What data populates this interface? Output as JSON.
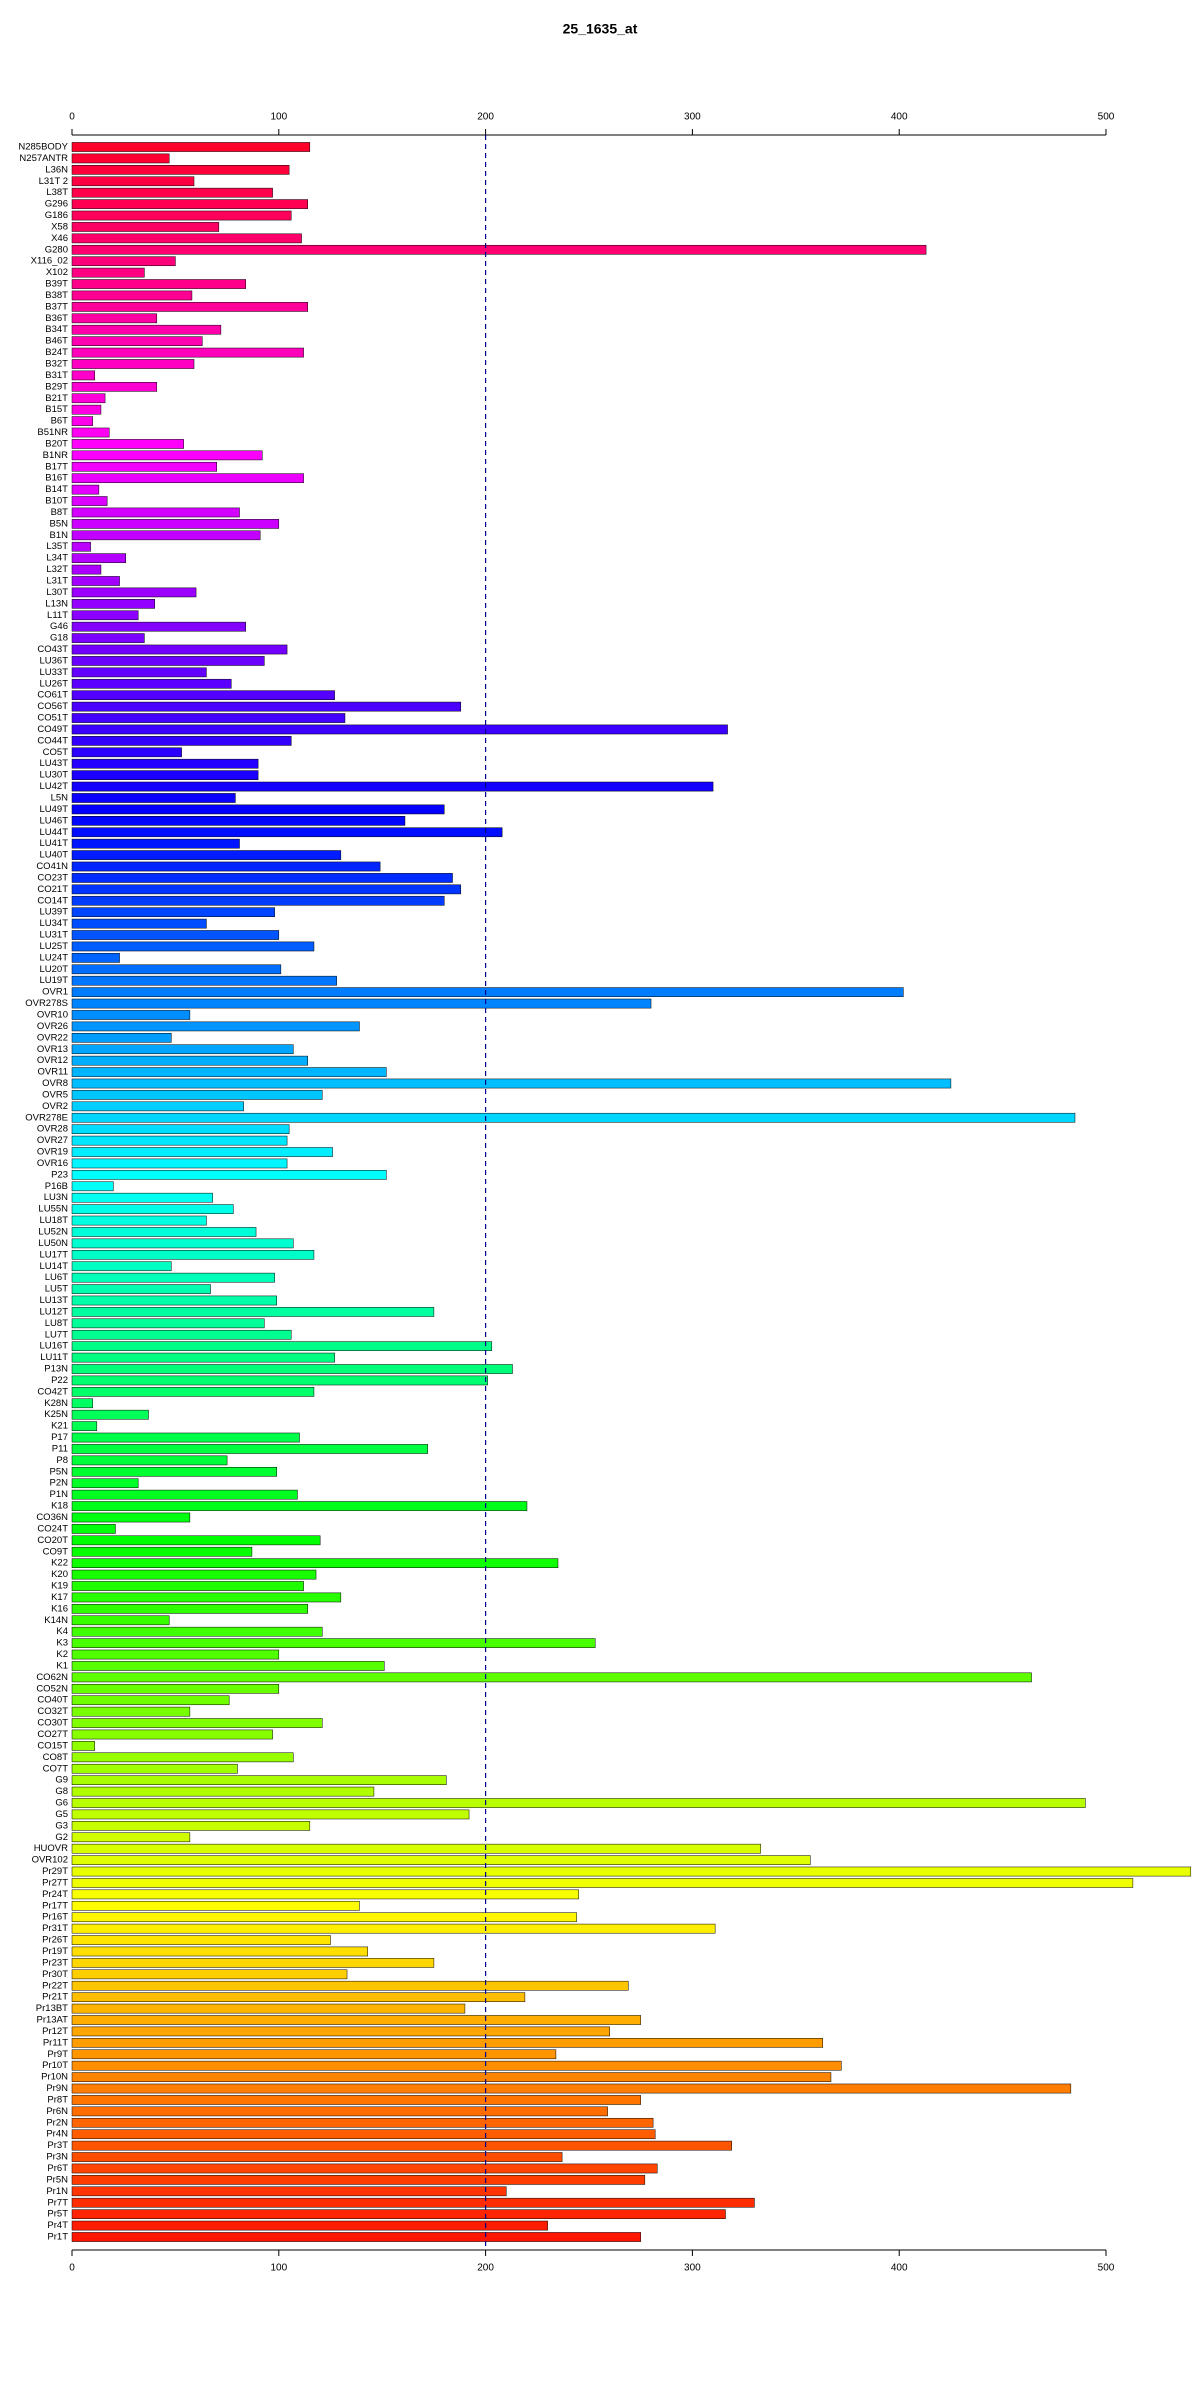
{
  "chart_data": {
    "type": "barh",
    "title": "25_1635_at",
    "categories": [
      "N285BODY",
      "N257ANTR",
      "L36N",
      "L31T 2",
      "L38T",
      "G296",
      "G186",
      "X58",
      "X46",
      "G280",
      "X116_02",
      "X102",
      "B39T",
      "B38T",
      "B37T",
      "B36T",
      "B34T",
      "B46T",
      "B24T",
      "B32T",
      "B31T",
      "B29T",
      "B21T",
      "B15T",
      "B6T",
      "B51NR",
      "B20T",
      "B1NR",
      "B17T",
      "B16T",
      "B14T",
      "B10T",
      "B8T",
      "B5N",
      "B1N",
      "L35T",
      "L34T",
      "L32T",
      "L31T",
      "L30T",
      "L13N",
      "L11T",
      "G46",
      "G18",
      "CO43T",
      "LU36T",
      "LU33T",
      "LU26T",
      "CO61T",
      "CO56T",
      "CO51T",
      "CO49T",
      "CO44T",
      "CO5T",
      "LU43T",
      "LU30T",
      "LU42T",
      "L5N",
      "LU49T",
      "LU46T",
      "LU44T",
      "LU41T",
      "LU40T",
      "CO41N",
      "CO23T",
      "CO21T",
      "CO14T",
      "LU39T",
      "LU34T",
      "LU31T",
      "LU25T",
      "LU24T",
      "LU20T",
      "LU19T",
      "OVR1",
      "OVR278S",
      "OVR10",
      "OVR26",
      "OVR22",
      "OVR13",
      "OVR12",
      "OVR11",
      "OVR8",
      "OVR5",
      "OVR2",
      "OVR278E",
      "OVR28",
      "OVR27",
      "OVR19",
      "OVR16",
      "P23",
      "P16B",
      "LU3N",
      "LU55N",
      "LU18T",
      "LU52N",
      "LU50N",
      "LU17T",
      "LU14T",
      "LU6T",
      "LU5T",
      "LU13T",
      "LU12T",
      "LU8T",
      "LU7T",
      "LU16T",
      "LU11T",
      "P13N",
      "P22",
      "CO42T",
      "K28N",
      "K25N",
      "K21",
      "P17",
      "P11",
      "P8",
      "P5N",
      "P2N",
      "P1N",
      "K18",
      "CO36N",
      "CO24T",
      "CO20T",
      "CO9T",
      "K22",
      "K20",
      "K19",
      "K17",
      "K16",
      "K14N",
      "K4",
      "K3",
      "K2",
      "K1",
      "CO62N",
      "CO52N",
      "CO40T",
      "CO32T",
      "CO30T",
      "CO27T",
      "CO15T",
      "CO8T",
      "CO7T",
      "G9",
      "G8",
      "G6",
      "G5",
      "G3",
      "G2",
      "HUOVR",
      "OVR102",
      "Pr29T",
      "Pr27T",
      "Pr24T",
      "Pr17T",
      "Pr16T",
      "Pr31T",
      "Pr26T",
      "Pr19T",
      "Pr23T",
      "Pr30T",
      "Pr22T",
      "Pr21T",
      "Pr13BT",
      "Pr13AT",
      "Pr12T",
      "Pr11T",
      "Pr9T",
      "Pr10T",
      "Pr10N",
      "Pr9N",
      "Pr8T",
      "Pr6N",
      "Pr2N",
      "Pr4N",
      "Pr3T",
      "Pr3N",
      "Pr6T",
      "Pr5N",
      "Pr1N",
      "Pr7T",
      "Pr5T",
      "Pr4T",
      "Pr1T"
    ],
    "values": [
      115,
      47,
      105,
      59,
      97,
      114,
      106,
      71,
      111,
      413,
      50,
      35,
      84,
      58,
      114,
      41,
      72,
      63,
      112,
      59,
      11,
      41,
      16,
      14,
      10,
      18,
      54,
      92,
      70,
      112,
      13,
      17,
      81,
      100,
      91,
      9,
      26,
      14,
      23,
      60,
      40,
      32,
      84,
      35,
      104,
      93,
      65,
      77,
      127,
      188,
      132,
      317,
      106,
      53,
      90,
      90,
      310,
      79,
      180,
      161,
      208,
      81,
      130,
      149,
      184,
      188,
      180,
      98,
      65,
      100,
      117,
      23,
      101,
      128,
      402,
      280,
      57,
      139,
      48,
      107,
      114,
      152,
      425,
      121,
      83,
      485,
      105,
      104,
      126,
      104,
      152,
      20,
      68,
      78,
      65,
      89,
      107,
      117,
      48,
      98,
      67,
      99,
      175,
      93,
      106,
      203,
      127,
      213,
      201,
      117,
      10,
      37,
      12,
      110,
      172,
      75,
      99,
      32,
      109,
      220,
      57,
      21,
      120,
      87,
      235,
      118,
      112,
      130,
      114,
      47,
      121,
      253,
      100,
      151,
      464,
      100,
      76,
      57,
      121,
      97,
      11,
      107,
      80,
      181,
      146,
      490,
      192,
      115,
      57,
      333,
      357,
      541,
      513,
      245,
      139,
      244,
      311,
      125,
      143,
      175,
      133,
      269,
      219,
      190,
      275,
      260,
      363,
      234,
      372,
      367,
      483,
      275,
      259,
      281,
      282,
      319,
      237,
      283,
      277,
      210,
      330,
      316,
      230,
      275
    ],
    "hue_range": [
      350,
      5
    ],
    "xlim": [
      0,
      500
    ],
    "xticks": [
      0,
      100,
      200,
      300,
      400,
      500
    ],
    "reference_line": 200
  }
}
